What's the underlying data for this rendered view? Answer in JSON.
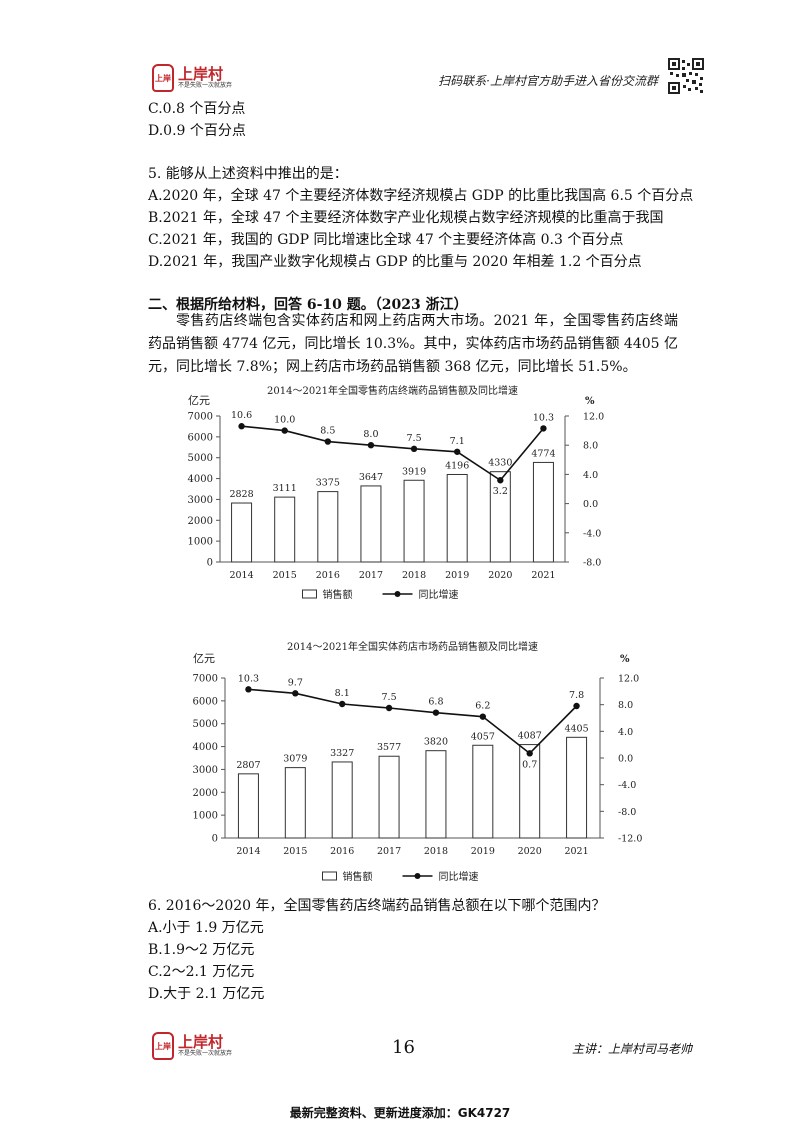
{
  "header": {
    "logo": {
      "seal_text": "上岸",
      "name": "上岸村",
      "slogan": "不是失败一次就放弃"
    },
    "right_text": "扫码联系·上岸村官方助手进入省份交流群"
  },
  "question4_tail": {
    "options": [
      "C.0.8 个百分点",
      "D.0.9 个百分点"
    ]
  },
  "question5": {
    "stem": "5. 能够从上述资料中推出的是：",
    "options": [
      "A.2020 年，全球 47 个主要经济体数字经济规模占 GDP 的比重比我国高 6.5 个百分点",
      "B.2021 年，全球 47 个主要经济体数字产业化规模占数字经济规模的比重高于我国",
      "C.2021 年，我国的 GDP 同比增速比全球 47 个主要经济体高 0.3 个百分点",
      "D.2021 年，我国产业数字化规模占 GDP 的比重与 2020 年相差 1.2 个百分点"
    ]
  },
  "section2": {
    "heading": "二、根据所给材料，回答 6-10 题。（2023 浙江）",
    "paragraph": "零售药店终端包含实体药店和网上药店两大市场。2021 年，全国零售药店终端药品销售额 4774 亿元，同比增长 10.3%。其中，实体药店市场药品销售额 4405 亿元，同比增长 7.8%；网上药店市场药品销售额 368 亿元，同比增长 51.5%。"
  },
  "chart_data": [
    {
      "type": "bar",
      "title": "2014～2021年全国零售药店终端药品销售额及同比增速",
      "ylabel": "亿元",
      "y2label": "%",
      "categories": [
        "2014",
        "2015",
        "2016",
        "2017",
        "2018",
        "2019",
        "2020",
        "2021"
      ],
      "series": [
        {
          "name": "销售额",
          "type": "bar",
          "axis": "left",
          "values": [
            2828,
            3111,
            3375,
            3647,
            3919,
            4196,
            4330,
            4774
          ]
        },
        {
          "name": "同比增速",
          "type": "line",
          "axis": "right",
          "values": [
            10.6,
            10.0,
            8.5,
            8.0,
            7.5,
            7.1,
            3.2,
            10.3
          ]
        }
      ],
      "ylim": [
        0,
        7000
      ],
      "yticks": [
        "0",
        "1000",
        "2000",
        "3000",
        "4000",
        "5000",
        "6000",
        "7000"
      ],
      "y2lim": [
        -8,
        12
      ],
      "y2ticks": [
        "-8.0",
        "-4.0",
        "0.0",
        "4.0",
        "8.0",
        "12.0"
      ],
      "legend": "bottom"
    },
    {
      "type": "bar",
      "title": "2014～2021年全国实体药店市场药品销售额及同比增速",
      "ylabel": "亿元",
      "y2label": "%",
      "categories": [
        "2014",
        "2015",
        "2016",
        "2017",
        "2018",
        "2019",
        "2020",
        "2021"
      ],
      "series": [
        {
          "name": "销售额",
          "type": "bar",
          "axis": "left",
          "values": [
            2807,
            3079,
            3327,
            3577,
            3820,
            4057,
            4087,
            4405
          ]
        },
        {
          "name": "同比增速",
          "type": "line",
          "axis": "right",
          "values": [
            10.3,
            9.7,
            8.1,
            7.5,
            6.8,
            6.2,
            0.7,
            7.8
          ]
        }
      ],
      "ylim": [
        0,
        7000
      ],
      "yticks": [
        "0",
        "1000",
        "2000",
        "3000",
        "4000",
        "5000",
        "6000",
        "7000"
      ],
      "y2lim": [
        -12,
        12
      ],
      "y2ticks": [
        "-12.0",
        "-8.0",
        "-4.0",
        "0.0",
        "4.0",
        "8.0",
        "12.0"
      ],
      "legend": "bottom"
    }
  ],
  "question6": {
    "stem": "6. 2016～2020 年，全国零售药店终端药品销售总额在以下哪个范围内？",
    "options": [
      "A.小于 1.9 万亿元",
      "B.1.9～2 万亿元",
      "C.2～2.1 万亿元",
      "D.大于 2.1 万亿元"
    ]
  },
  "footer": {
    "page_number": "16",
    "lecturer": "主讲：上岸村司马老帅",
    "bottom_note": "最新完整资料、更新进度添加：GK4727"
  }
}
